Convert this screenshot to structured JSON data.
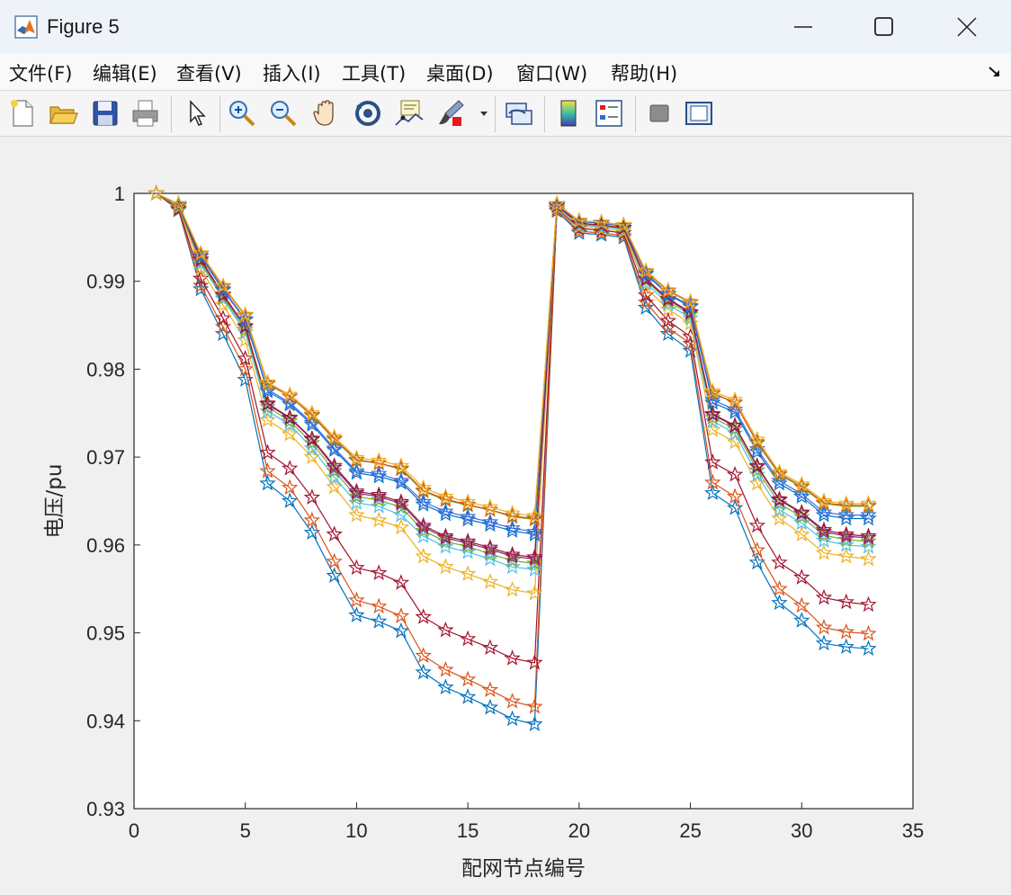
{
  "window": {
    "title": "Figure 5",
    "controls": [
      "minimize",
      "maximize",
      "close"
    ]
  },
  "menu": {
    "items": [
      "文件(F)",
      "编辑(E)",
      "查看(V)",
      "插入(I)",
      "工具(T)",
      "桌面(D)",
      "窗口(W)",
      "帮助(H)"
    ]
  },
  "toolbar": {
    "icons": [
      "new-figure-icon",
      "open-file-icon",
      "save-icon",
      "print-icon",
      "pointer-icon",
      "zoom-in-icon",
      "zoom-out-icon",
      "pan-icon",
      "rotate-3d-icon",
      "data-cursor-icon",
      "brush-icon",
      "link-plot-icon",
      "colorbar-icon",
      "legend-icon",
      "hide-plot-tools-icon",
      "show-plot-tools-icon"
    ]
  },
  "chart_data": {
    "type": "line",
    "marker": "pentagram",
    "xlabel": "配网节点编号",
    "ylabel": "电压/pu",
    "xlim": [
      0,
      35
    ],
    "ylim": [
      0.93,
      1.0
    ],
    "xticks": [
      "0",
      "5",
      "10",
      "15",
      "20",
      "25",
      "30",
      "35"
    ],
    "yticks": [
      "0.93",
      "0.94",
      "0.95",
      "0.96",
      "0.97",
      "0.98",
      "0.99",
      "1"
    ],
    "grid": false,
    "x": [
      1,
      2,
      3,
      4,
      5,
      6,
      7,
      8,
      9,
      10,
      11,
      12,
      13,
      14,
      15,
      16,
      17,
      18,
      19,
      20,
      21,
      22,
      23,
      24,
      25,
      26,
      27,
      28,
      29,
      30,
      31,
      32,
      33
    ],
    "series": [
      {
        "color": "#0072bd",
        "values": [
          1.0,
          0.9981,
          0.9891,
          0.984,
          0.9788,
          0.967,
          0.965,
          0.9614,
          0.9565,
          0.952,
          0.9513,
          0.9502,
          0.9455,
          0.9438,
          0.9427,
          0.9415,
          0.9402,
          0.9396,
          0.998,
          0.9955,
          0.9953,
          0.995,
          0.987,
          0.984,
          0.9821,
          0.9659,
          0.9642,
          0.958,
          0.9534,
          0.9514,
          0.9488,
          0.9484,
          0.9482
        ]
      },
      {
        "color": "#d95319",
        "values": [
          1.0,
          0.9982,
          0.9895,
          0.9848,
          0.98,
          0.9684,
          0.9665,
          0.9628,
          0.9581,
          0.9537,
          0.953,
          0.9519,
          0.9474,
          0.9458,
          0.9447,
          0.9435,
          0.9422,
          0.9416,
          0.9981,
          0.9957,
          0.9955,
          0.9952,
          0.9876,
          0.9847,
          0.9829,
          0.9671,
          0.9655,
          0.9594,
          0.955,
          0.9531,
          0.9506,
          0.9501,
          0.9499
        ]
      },
      {
        "color": "#a2142f",
        "values": [
          1.0,
          0.9983,
          0.9903,
          0.9858,
          0.9812,
          0.9705,
          0.9687,
          0.9654,
          0.9612,
          0.9574,
          0.9568,
          0.9557,
          0.9518,
          0.9503,
          0.9493,
          0.9483,
          0.9471,
          0.9466,
          0.9983,
          0.996,
          0.9958,
          0.9955,
          0.9884,
          0.9855,
          0.9837,
          0.9694,
          0.968,
          0.9622,
          0.958,
          0.9563,
          0.954,
          0.9535,
          0.9532
        ]
      },
      {
        "color": "#edb120",
        "values": [
          1.0,
          0.9985,
          0.9914,
          0.9873,
          0.9833,
          0.9742,
          0.9726,
          0.97,
          0.9666,
          0.9634,
          0.9628,
          0.962,
          0.9587,
          0.9575,
          0.9567,
          0.9558,
          0.9549,
          0.9545,
          0.9984,
          0.9962,
          0.996,
          0.9957,
          0.9893,
          0.9868,
          0.9852,
          0.9731,
          0.9717,
          0.967,
          0.963,
          0.9612,
          0.9591,
          0.9587,
          0.9584
        ]
      },
      {
        "color": "#4dbeee",
        "values": [
          1.0,
          0.9986,
          0.992,
          0.988,
          0.9842,
          0.9752,
          0.9737,
          0.971,
          0.9677,
          0.9648,
          0.9644,
          0.9634,
          0.961,
          0.9598,
          0.9592,
          0.9584,
          0.9575,
          0.9572,
          0.9985,
          0.9964,
          0.9962,
          0.9959,
          0.9898,
          0.9874,
          0.9858,
          0.9741,
          0.9727,
          0.968,
          0.964,
          0.9625,
          0.9605,
          0.96,
          0.9598
        ]
      },
      {
        "color": "#77ac30",
        "values": [
          1.0,
          0.9986,
          0.9922,
          0.9882,
          0.9845,
          0.9757,
          0.9741,
          0.9716,
          0.9684,
          0.9655,
          0.9651,
          0.9643,
          0.9616,
          0.9604,
          0.9598,
          0.959,
          0.9582,
          0.9579,
          0.9986,
          0.9965,
          0.9963,
          0.996,
          0.9901,
          0.9877,
          0.9862,
          0.9745,
          0.9732,
          0.9685,
          0.9647,
          0.9632,
          0.9611,
          0.9606,
          0.9604
        ]
      },
      {
        "color": "#7e2f8e",
        "values": [
          1.0,
          0.9987,
          0.9924,
          0.9884,
          0.9848,
          0.976,
          0.9744,
          0.972,
          0.9688,
          0.9659,
          0.9655,
          0.9647,
          0.962,
          0.9608,
          0.9602,
          0.9595,
          0.9587,
          0.9584,
          0.9986,
          0.9966,
          0.9964,
          0.9961,
          0.9902,
          0.9879,
          0.9864,
          0.9748,
          0.9735,
          0.9689,
          0.9651,
          0.9636,
          0.9615,
          0.961,
          0.9608
        ]
      },
      {
        "color": "#a2142f",
        "values": [
          1.0,
          0.9987,
          0.9925,
          0.9885,
          0.9849,
          0.9761,
          0.9745,
          0.9721,
          0.969,
          0.9661,
          0.9657,
          0.9649,
          0.9622,
          0.961,
          0.9604,
          0.9597,
          0.9589,
          0.9586,
          0.9986,
          0.9966,
          0.9964,
          0.9961,
          0.9903,
          0.988,
          0.9865,
          0.9749,
          0.9736,
          0.969,
          0.9652,
          0.9637,
          0.9617,
          0.9612,
          0.961
        ]
      },
      {
        "color": "#0072bd",
        "values": [
          1.0,
          0.9987,
          0.9928,
          0.989,
          0.9856,
          0.9775,
          0.976,
          0.9737,
          0.9708,
          0.9682,
          0.9678,
          0.9671,
          0.9646,
          0.9635,
          0.9629,
          0.9623,
          0.9616,
          0.9612,
          0.9987,
          0.9968,
          0.9966,
          0.9963,
          0.9908,
          0.9885,
          0.9871,
          0.9762,
          0.9751,
          0.9706,
          0.967,
          0.9655,
          0.9634,
          0.963,
          0.963
        ]
      },
      {
        "color": "#4169e1",
        "values": [
          1.0,
          0.9988,
          0.9929,
          0.9891,
          0.9857,
          0.9777,
          0.9762,
          0.9739,
          0.971,
          0.9684,
          0.9681,
          0.9673,
          0.9649,
          0.9638,
          0.9632,
          0.9626,
          0.9619,
          0.9615,
          0.9987,
          0.9968,
          0.9966,
          0.9963,
          0.9909,
          0.9886,
          0.9872,
          0.9765,
          0.9754,
          0.9709,
          0.9673,
          0.9658,
          0.9637,
          0.9634,
          0.9634
        ]
      },
      {
        "color": "#77ac30",
        "values": [
          1.0,
          0.9988,
          0.9931,
          0.9894,
          0.9861,
          0.9783,
          0.9769,
          0.9747,
          0.972,
          0.9696,
          0.9693,
          0.9686,
          0.9661,
          0.9651,
          0.9645,
          0.964,
          0.9632,
          0.9629,
          0.9988,
          0.9969,
          0.9967,
          0.9964,
          0.9911,
          0.9889,
          0.9876,
          0.9772,
          0.9762,
          0.9716,
          0.968,
          0.9666,
          0.9647,
          0.9644,
          0.9644
        ]
      },
      {
        "color": "#d95319",
        "values": [
          1.0,
          0.9988,
          0.9931,
          0.9894,
          0.9861,
          0.9784,
          0.9769,
          0.9748,
          0.9721,
          0.9697,
          0.9693,
          0.9687,
          0.9662,
          0.9652,
          0.9646,
          0.964,
          0.9633,
          0.963,
          0.9988,
          0.9969,
          0.9967,
          0.9964,
          0.9911,
          0.9889,
          0.9876,
          0.9773,
          0.9762,
          0.9717,
          0.9681,
          0.9667,
          0.9648,
          0.9645,
          0.9645
        ]
      },
      {
        "color": "#edb120",
        "values": [
          1.0,
          0.9988,
          0.9932,
          0.9895,
          0.9862,
          0.9785,
          0.9771,
          0.975,
          0.9723,
          0.9699,
          0.9696,
          0.969,
          0.9665,
          0.9655,
          0.9649,
          0.9643,
          0.9636,
          0.9633,
          0.9988,
          0.9969,
          0.9967,
          0.9964,
          0.9912,
          0.989,
          0.9877,
          0.9775,
          0.9765,
          0.972,
          0.9683,
          0.9669,
          0.965,
          0.9647,
          0.9647
        ]
      }
    ]
  }
}
